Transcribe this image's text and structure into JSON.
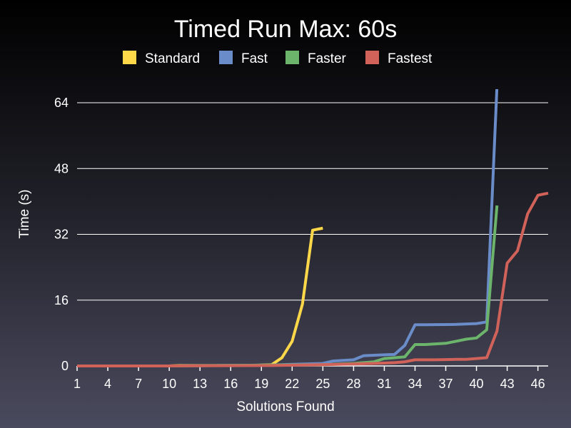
{
  "chart_data": {
    "type": "line",
    "title": "Timed Run Max: 60s",
    "xlabel": "Solutions Found",
    "ylabel": "Time (s)",
    "xlim": [
      1,
      47
    ],
    "ylim": [
      0,
      64
    ],
    "x_ticks": [
      1,
      4,
      7,
      10,
      13,
      16,
      19,
      22,
      25,
      28,
      31,
      34,
      37,
      40,
      43,
      46
    ],
    "y_ticks": [
      0,
      16,
      32,
      48,
      64
    ],
    "grid": "horizontal",
    "legend_position": "top-center",
    "series": [
      {
        "name": "Standard",
        "color": "#ffd84a",
        "x": [
          1,
          2,
          3,
          4,
          5,
          6,
          7,
          8,
          9,
          10,
          11,
          12,
          13,
          14,
          15,
          16,
          17,
          18,
          19,
          20,
          21,
          22,
          23,
          24,
          25
        ],
        "y": [
          0,
          0,
          0,
          0,
          0,
          0,
          0,
          0,
          0,
          0,
          0.1,
          0.1,
          0.1,
          0.1,
          0.1,
          0.1,
          0.1,
          0.1,
          0.2,
          0.3,
          2,
          6,
          15,
          33,
          33.5
        ]
      },
      {
        "name": "Fast",
        "color": "#6a8cc8",
        "x": [
          1,
          5,
          10,
          15,
          20,
          22,
          25,
          26,
          28,
          29,
          31,
          32,
          33,
          34,
          35,
          38,
          40,
          41,
          42
        ],
        "y": [
          0,
          0,
          0,
          0.1,
          0.2,
          0.4,
          0.6,
          1.2,
          1.5,
          2.5,
          2.7,
          2.8,
          5,
          10,
          10,
          10.1,
          10.3,
          10.7,
          68
        ]
      },
      {
        "name": "Faster",
        "color": "#6cb46c",
        "x": [
          1,
          5,
          10,
          15,
          20,
          25,
          28,
          30,
          31,
          32,
          33,
          34,
          35,
          37,
          38,
          39,
          40,
          41,
          42
        ],
        "y": [
          0,
          0,
          0,
          0.1,
          0.2,
          0.3,
          0.6,
          1,
          1.8,
          2,
          2.2,
          5.2,
          5.2,
          5.5,
          6,
          6.5,
          6.8,
          8.8,
          39
        ]
      },
      {
        "name": "Fastest",
        "color": "#d0625a",
        "x": [
          1,
          10,
          20,
          25,
          30,
          32,
          33,
          34,
          36,
          38,
          39,
          40,
          41,
          42,
          43,
          44,
          45,
          46,
          47
        ],
        "y": [
          0,
          0,
          0.1,
          0.3,
          0.6,
          0.8,
          1,
          1.5,
          1.5,
          1.6,
          1.6,
          1.8,
          2,
          8.5,
          25,
          28,
          37,
          41.5,
          42
        ]
      }
    ]
  }
}
